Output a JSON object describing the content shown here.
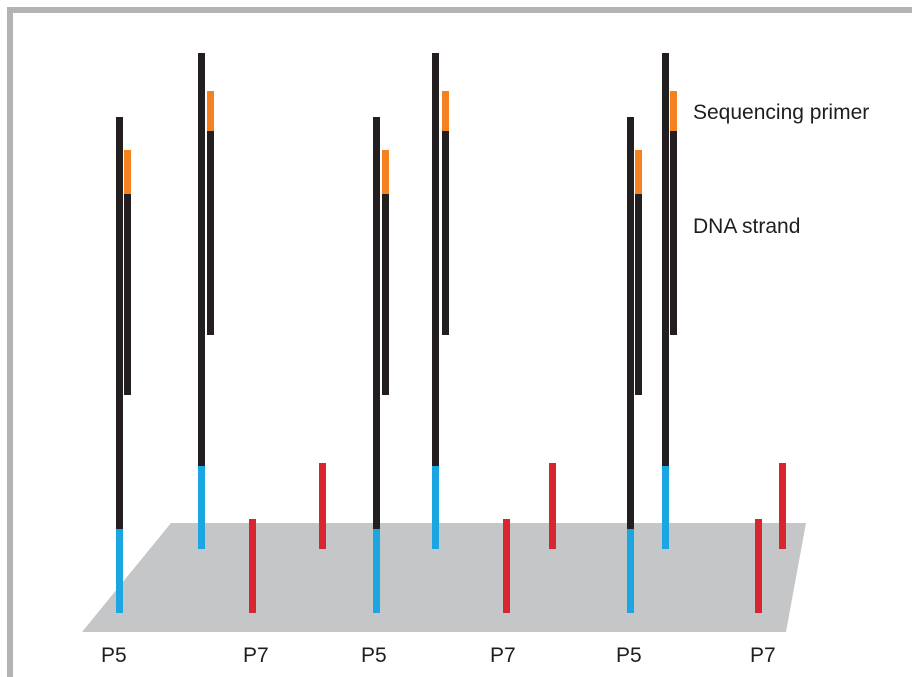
{
  "colors": {
    "frame": "#b3b3b3",
    "flowcell_surface": "#c5c6c8",
    "dna_strand": "#231f20",
    "sequencing_primer": "#f58220",
    "p5_adapter": "#1ba6e1",
    "p7_adapter": "#d7262e",
    "label_text": "#1e1e1e"
  },
  "legend": {
    "sequencing_primer": "Sequencing primer",
    "dna_strand": "DNA strand"
  },
  "surface_labels": [
    {
      "text": "P5"
    },
    {
      "text": "P7"
    },
    {
      "text": "P5"
    },
    {
      "text": "P7"
    },
    {
      "text": "P5"
    },
    {
      "text": "P7"
    }
  ]
}
